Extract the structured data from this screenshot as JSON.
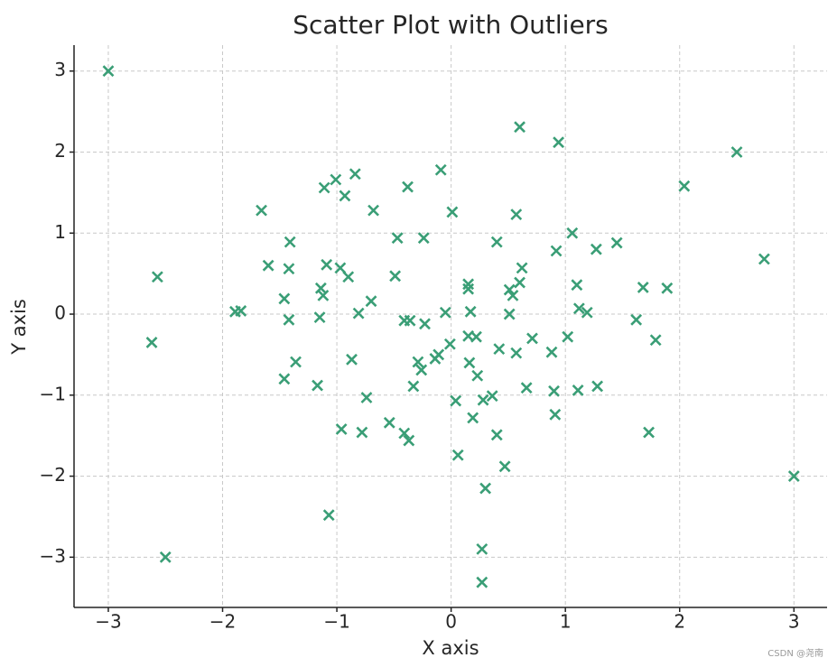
{
  "chart_data": {
    "type": "scatter",
    "title": "Scatter Plot with Outliers",
    "xlabel": "X axis",
    "ylabel": "Y axis",
    "watermark": "CSDN @尧南",
    "color": "#3a9e76",
    "marker": "x",
    "grid": true,
    "xlim": [
      -3.3,
      3.29
    ],
    "ylim": [
      -3.62,
      3.32
    ],
    "xticks": [
      {
        "value": -3,
        "label": "−3"
      },
      {
        "value": -2,
        "label": "−2"
      },
      {
        "value": -1,
        "label": "−1"
      },
      0,
      1,
      2,
      3
    ],
    "yticks": [
      {
        "value": -3,
        "label": "−3"
      },
      {
        "value": -2,
        "label": "−2"
      },
      {
        "value": -1,
        "label": "−1"
      },
      0,
      1,
      2,
      3
    ],
    "x": [
      -3,
      0.6,
      0.94,
      2.5,
      2.04,
      -0.09,
      -0.84,
      -1.01,
      -1.11,
      -0.38,
      -0.93,
      -1.66,
      -0.68,
      0.01,
      0.57,
      1.06,
      -1.41,
      -0.47,
      -0.24,
      0.4,
      1.27,
      1.45,
      0.92,
      2.74,
      -2.57,
      -1.6,
      -1.42,
      -1.09,
      -0.97,
      -0.9,
      -0.49,
      0.62,
      0.6,
      0.15,
      0.15,
      0.51,
      0.54,
      1.1,
      1.68,
      1.89,
      -1.14,
      -1.12,
      -1.46,
      -0.7,
      -1.89,
      -1.84,
      -1.15,
      -1.42,
      -0.81,
      -0.41,
      -0.36,
      -0.23,
      -0.05,
      0.17,
      0.51,
      1.12,
      1.19,
      1.62,
      -2.62,
      -0.01,
      0.15,
      0.22,
      0.71,
      1.02,
      1.79,
      0.42,
      0.57,
      0.88,
      -0.11,
      -0.14,
      -0.29,
      -0.26,
      -1.36,
      -0.87,
      0.16,
      0.23,
      -1.46,
      -1.17,
      -0.33,
      0.66,
      0.9,
      1.11,
      1.28,
      -0.74,
      0.36,
      0.28,
      0.04,
      0.91,
      0.19,
      -0.54,
      -0.96,
      -0.78,
      -0.41,
      -0.37,
      0.4,
      1.73,
      0.06,
      0.47,
      3,
      0.3,
      -1.07,
      0.27,
      -2.5,
      0.27
    ],
    "values": [
      3,
      2.31,
      2.12,
      2,
      1.58,
      1.78,
      1.73,
      1.66,
      1.56,
      1.57,
      1.46,
      1.28,
      1.28,
      1.26,
      1.23,
      1.0,
      0.89,
      0.94,
      0.94,
      0.89,
      0.8,
      0.88,
      0.78,
      0.68,
      0.46,
      0.6,
      0.56,
      0.61,
      0.57,
      0.46,
      0.47,
      0.57,
      0.39,
      0.37,
      0.31,
      0.3,
      0.23,
      0.36,
      0.33,
      0.32,
      0.32,
      0.23,
      0.19,
      0.16,
      0.03,
      0.04,
      -0.04,
      -0.07,
      0.01,
      -0.08,
      -0.08,
      -0.12,
      0.02,
      0.03,
      0.0,
      0.07,
      0.02,
      -0.07,
      -0.35,
      -0.37,
      -0.27,
      -0.28,
      -0.3,
      -0.28,
      -0.32,
      -0.43,
      -0.48,
      -0.47,
      -0.5,
      -0.55,
      -0.59,
      -0.69,
      -0.59,
      -0.56,
      -0.6,
      -0.76,
      -0.8,
      -0.88,
      -0.89,
      -0.91,
      -0.95,
      -0.94,
      -0.89,
      -1.03,
      -1.01,
      -1.06,
      -1.07,
      -1.24,
      -1.28,
      -1.34,
      -1.42,
      -1.46,
      -1.47,
      -1.56,
      -1.49,
      -1.46,
      -1.74,
      -1.88,
      -2,
      -2.15,
      -2.48,
      -2.9,
      -3,
      -3.31
    ]
  }
}
